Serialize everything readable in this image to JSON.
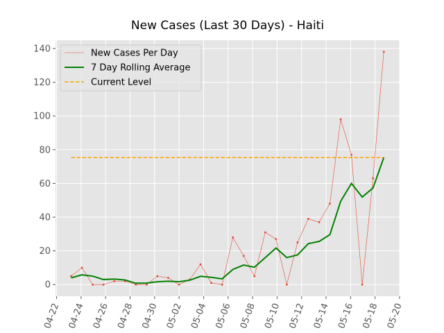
{
  "chart_data": {
    "type": "line",
    "title": "New Cases (Last 30 Days) - Haiti",
    "x": [
      1.19,
      2.07,
      2.95,
      3.83,
      4.71,
      5.59,
      6.47,
      7.35,
      8.23,
      9.11,
      9.99,
      10.87,
      11.75,
      12.63,
      13.51,
      14.39,
      15.27,
      16.15,
      17.03,
      17.91,
      18.79,
      19.67,
      20.55,
      21.43,
      22.31,
      23.19,
      24.07,
      24.95,
      25.83,
      26.71
    ],
    "series": [
      {
        "name": "New Cases Per Day",
        "color": "#E24A33",
        "values": [
          5,
          10,
          0,
          0,
          2,
          2,
          0,
          0,
          5,
          4,
          0,
          3,
          12,
          1,
          0,
          28,
          17,
          5,
          31,
          27,
          0,
          25,
          39,
          37,
          48,
          98,
          77,
          0,
          63,
          138
        ]
      },
      {
        "name": "7 Day Rolling Average",
        "color": "#008000",
        "values": [
          4,
          5.8,
          5,
          3,
          3.3,
          2.7,
          0.8,
          0.9,
          1.7,
          2,
          1.7,
          2.6,
          4.9,
          4.3,
          3.4,
          9,
          11.6,
          10.3,
          16,
          21.7,
          16,
          17.6,
          24.3,
          25.6,
          29.6,
          49.4,
          60,
          51.9,
          57.3,
          75.3
        ]
      }
    ],
    "hline": {
      "name": "Current Level",
      "color": "#FFA500",
      "value": 75.3
    },
    "xlim": [
      -0.09,
      28.0
    ],
    "xticks": [
      {
        "value": 0,
        "label": "04-22"
      },
      {
        "value": 2,
        "label": "04-24"
      },
      {
        "value": 4,
        "label": "04-26"
      },
      {
        "value": 6,
        "label": "04-28"
      },
      {
        "value": 8,
        "label": "04-30"
      },
      {
        "value": 10,
        "label": "05-02"
      },
      {
        "value": 12,
        "label": "05-04"
      },
      {
        "value": 14,
        "label": "05-06"
      },
      {
        "value": 16,
        "label": "05-08"
      },
      {
        "value": 18,
        "label": "05-10"
      },
      {
        "value": 20,
        "label": "05-12"
      },
      {
        "value": 22,
        "label": "05-14"
      },
      {
        "value": 24,
        "label": "05-16"
      },
      {
        "value": 26,
        "label": "05-18"
      },
      {
        "value": 28,
        "label": "05-20"
      }
    ],
    "ylim": [
      -6.9,
      144.9
    ],
    "yticks": [
      0,
      20,
      40,
      60,
      80,
      100,
      120,
      140
    ],
    "grid": true,
    "legend": "upper left"
  }
}
